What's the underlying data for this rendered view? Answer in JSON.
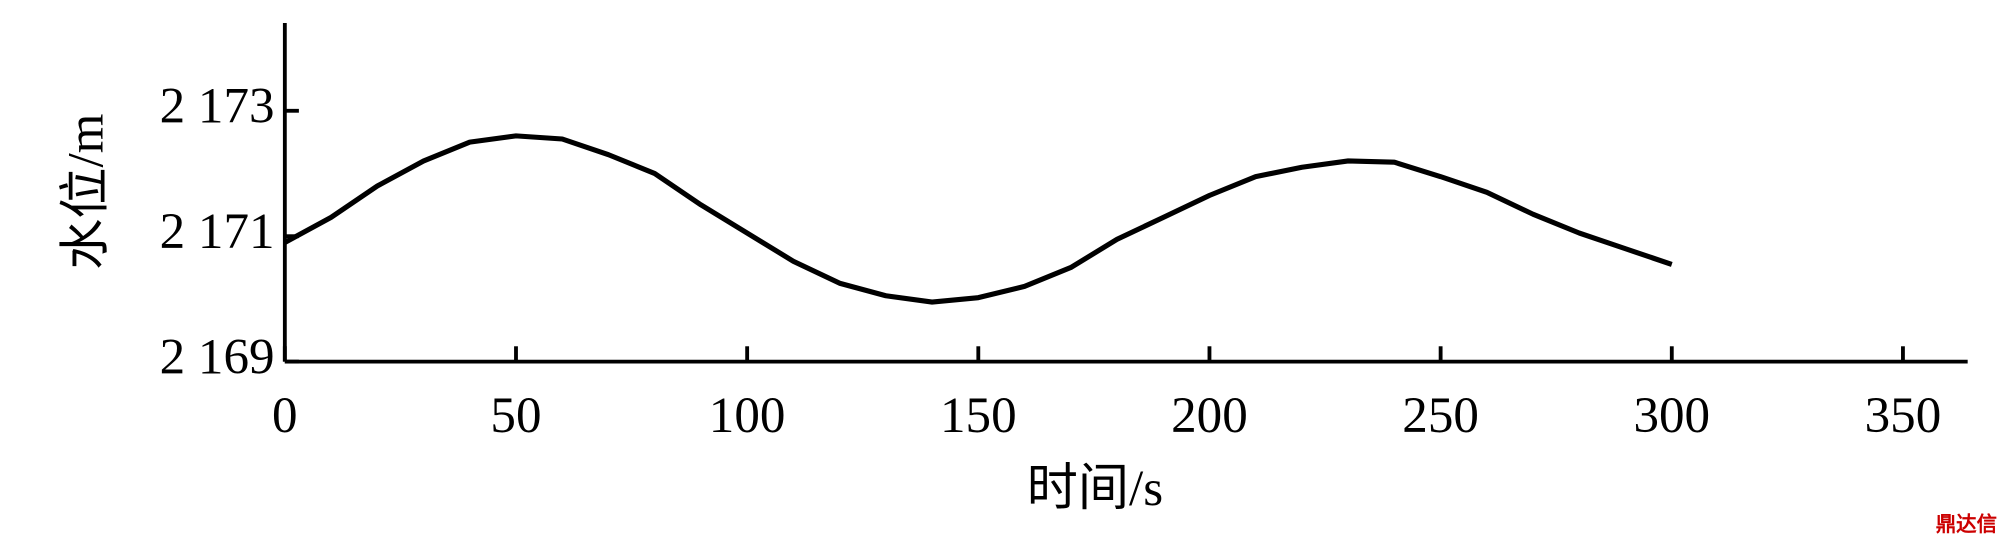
{
  "chart_data": {
    "type": "line",
    "x_label": "时间/s",
    "y_label": "水位/m",
    "watermark": "鼎达信",
    "x": [
      0,
      10,
      20,
      30,
      40,
      50,
      60,
      70,
      80,
      90,
      100,
      110,
      120,
      130,
      140,
      150,
      160,
      170,
      180,
      190,
      200,
      210,
      220,
      230,
      240,
      250,
      260,
      270,
      280,
      290,
      300
    ],
    "series": [
      {
        "color": "#000000",
        "values": [
          2170.9,
          2171.3,
          2171.8,
          2172.2,
          2172.5,
          2172.6,
          2172.55,
          2172.3,
          2172.0,
          2171.5,
          2171.05,
          2170.6,
          2170.25,
          2170.05,
          2169.95,
          2170.02,
          2170.2,
          2170.5,
          2170.95,
          2171.3,
          2171.65,
          2171.95,
          2172.1,
          2172.2,
          2172.18,
          2171.95,
          2171.7,
          2171.35,
          2171.05,
          2170.8,
          2170.55
        ]
      }
    ],
    "xlim": [
      0,
      364
    ],
    "xticks": [
      0,
      50,
      100,
      150,
      200,
      250,
      300,
      350
    ],
    "ylim": [
      2169,
      2174.4
    ],
    "yticks": [
      {
        "value": 2169,
        "label": "2 169"
      },
      {
        "value": 2171,
        "label": "2 171"
      },
      {
        "value": 2173,
        "label": "2 173"
      }
    ]
  }
}
